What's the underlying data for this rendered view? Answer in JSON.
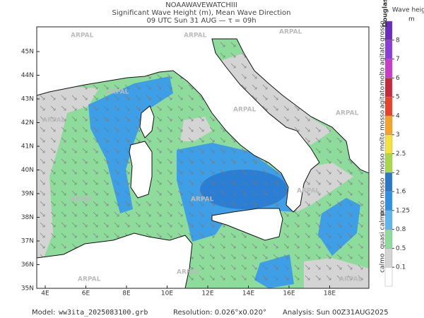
{
  "header": {
    "title": "NOAAWAVEWATCHIII",
    "subtitle": "Significant Wave Height (m), Mean Wave Direction",
    "time": "09 UTC Sun 31 AUG  —  τ = 09h"
  },
  "map": {
    "lat_labels": [
      "45N",
      "44N",
      "43N",
      "42N",
      "41N",
      "40N",
      "39N",
      "38N",
      "37N",
      "36N",
      "35N"
    ],
    "lon_labels": [
      "4E",
      "6E",
      "8E",
      "10E",
      "12E",
      "14E",
      "16E",
      "18E"
    ],
    "watermark": "ARPAL"
  },
  "colorbar": {
    "scale_title": "Douglas",
    "title": "Wave height",
    "unit": "m",
    "labels": [
      "0.1",
      "0.5",
      "0.8",
      "1.25",
      "1.6",
      "2",
      "2.5",
      "3",
      "4",
      "5",
      "6",
      "7",
      "8"
    ],
    "colors": [
      "#ffffff",
      "#d4d4d4",
      "#8edc9c",
      "#5fb6ef",
      "#2f8fe0",
      "#2a78c8",
      "#a8d848",
      "#f2e23c",
      "#f6a228",
      "#e8402a",
      "#c8283c",
      "#c83cc8",
      "#8a3cd8",
      "#6a2cc0"
    ],
    "sea_states": [
      "calmo",
      "quasi calmo",
      "poco mosso",
      "mosso",
      "molto mosso",
      "agitato",
      "molto agitato",
      "grosso"
    ]
  },
  "footer": {
    "model_label": "Model:",
    "model": "ww3ita_2025083100.grb",
    "resolution": "Resolution: 0.026°x0.020°",
    "analysis": "Analysis: Sun 00Z31AUG2025"
  }
}
